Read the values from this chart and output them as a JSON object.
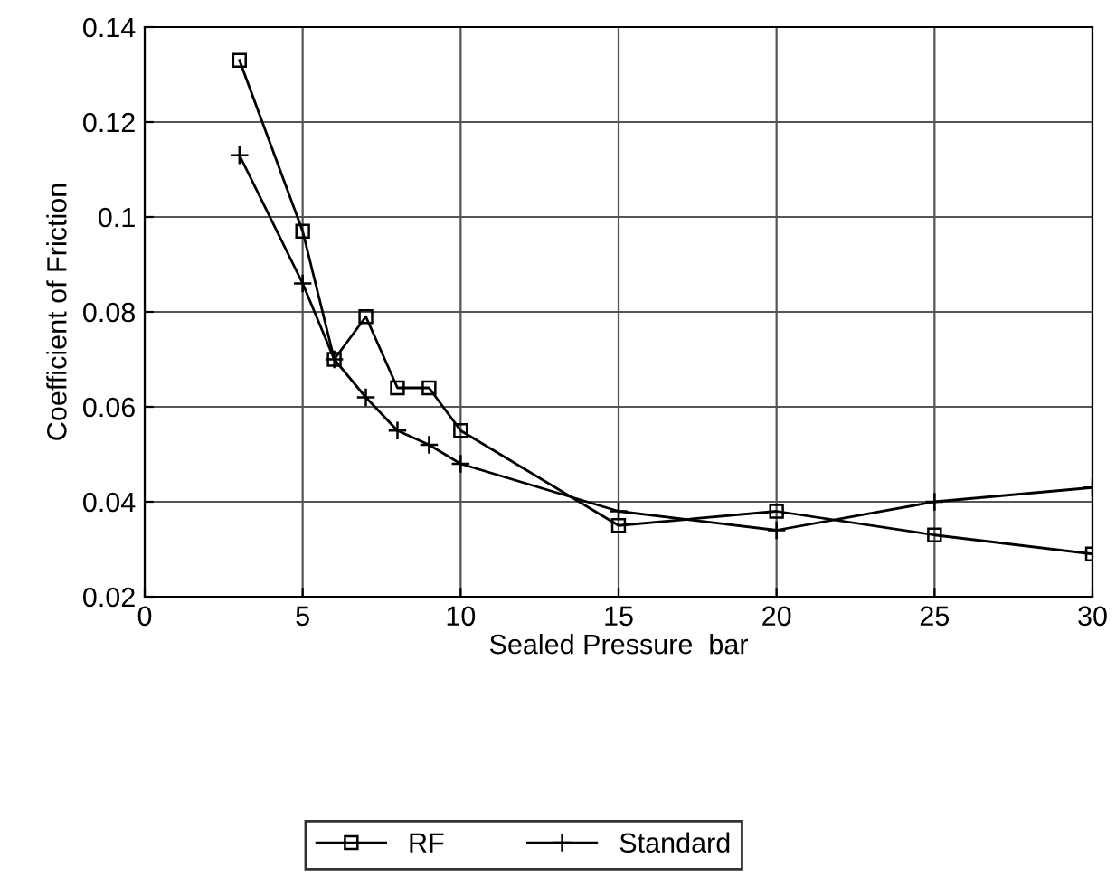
{
  "chart_data": {
    "type": "line",
    "xlabel": "Sealed Pressure  bar",
    "ylabel": "Coefficient of Friction",
    "x": [
      3,
      5,
      6,
      7,
      8,
      9,
      10,
      15,
      20,
      25,
      30
    ],
    "series": [
      {
        "name": "RF",
        "color": "#000000",
        "marker": "square",
        "values": [
          0.133,
          0.097,
          0.07,
          0.079,
          0.064,
          0.064,
          0.055,
          0.035,
          0.038,
          0.033,
          0.029
        ]
      },
      {
        "name": "Standard",
        "color": "#000000",
        "marker": "cross",
        "values": [
          0.113,
          0.086,
          0.07,
          0.062,
          0.055,
          0.052,
          0.048,
          0.038,
          0.034,
          0.04,
          0.043
        ]
      }
    ],
    "xlim": [
      0,
      30
    ],
    "xticks": [
      0,
      5,
      10,
      15,
      20,
      25,
      30
    ],
    "ylim": [
      0.02,
      0.14
    ],
    "yticks": [
      0.02,
      0.04,
      0.06,
      0.08,
      0.1,
      0.12,
      0.14
    ],
    "grid": true,
    "legend": "bottom",
    "line_style": "solid"
  }
}
